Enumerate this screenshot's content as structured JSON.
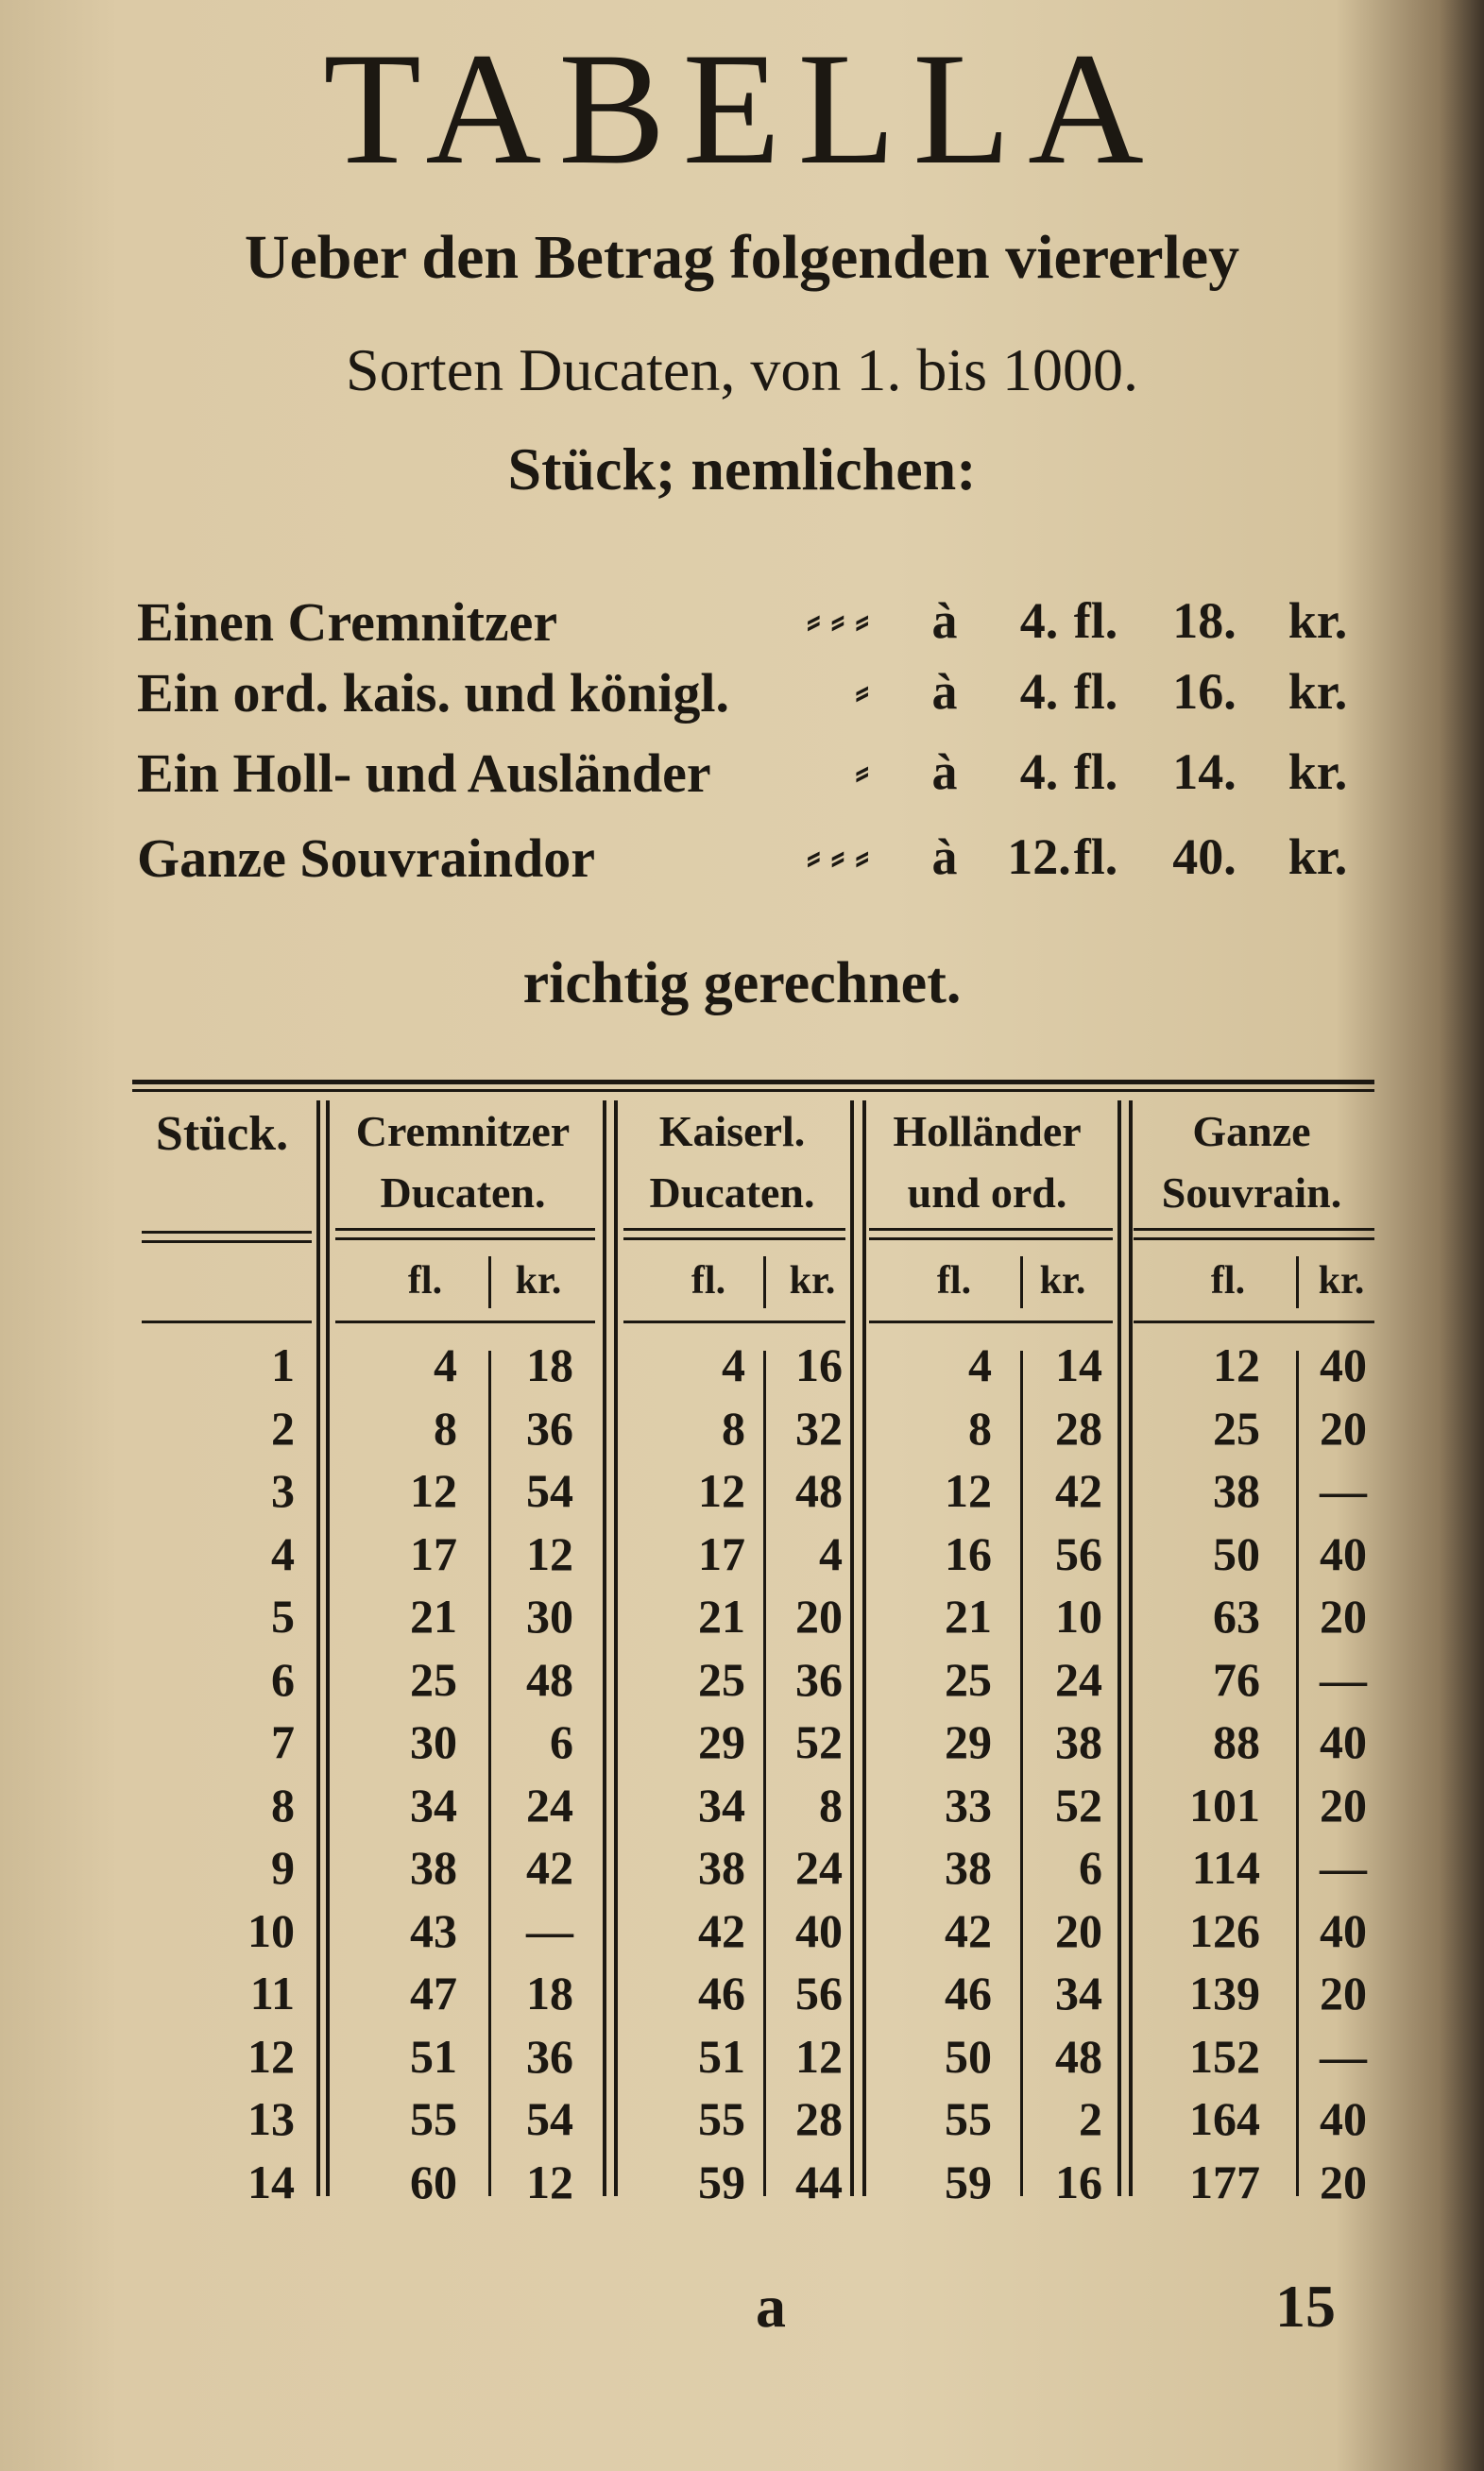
{
  "header": {
    "title": "TABELLA",
    "lines": [
      "Ueber den Betrag folgenden viererley",
      "Sorten Ducaten, von 1. bis 1000.",
      "Stück; nemlichen:"
    ]
  },
  "rates": [
    {
      "label": "Einen Cremnitzer",
      "leader": "⸗ ⸗ ⸗",
      "parts": [
        "à",
        "4.",
        "fl.",
        "18.",
        "kr."
      ]
    },
    {
      "label": "Ein ord. kais. und königl.",
      "leader": "⸗",
      "parts": [
        "à",
        "4.",
        "fl.",
        "16.",
        "kr."
      ]
    },
    {
      "label": "Ein Holl- und Ausländer",
      "leader": "⸗",
      "parts": [
        "à",
        "4.",
        "fl.",
        "14.",
        "kr."
      ]
    },
    {
      "label": "Ganze Souvraindor",
      "leader": "⸗ ⸗ ⸗",
      "parts": [
        "à",
        "12.",
        "fl.",
        "40.",
        "kr."
      ]
    }
  ],
  "note": "richtig gerechnet.",
  "table": {
    "headers": [
      [
        "Stück."
      ],
      [
        "Cremnitzer",
        "Ducaten."
      ],
      [
        "Kaiserl.",
        "Ducaten."
      ],
      [
        "Holländer",
        "und ord."
      ],
      [
        "Ganze",
        "Souvrain."
      ]
    ],
    "subheaders": [
      "fl.",
      "kr.",
      "fl.",
      "kr.",
      "fl.",
      "kr.",
      "fl.",
      "kr."
    ],
    "rows": [
      [
        "1",
        "4",
        "18",
        "4",
        "16",
        "4",
        "14",
        "12",
        "40"
      ],
      [
        "2",
        "8",
        "36",
        "8",
        "32",
        "8",
        "28",
        "25",
        "20"
      ],
      [
        "3",
        "12",
        "54",
        "12",
        "48",
        "12",
        "42",
        "38",
        "—"
      ],
      [
        "4",
        "17",
        "12",
        "17",
        "4",
        "16",
        "56",
        "50",
        "40"
      ],
      [
        "5",
        "21",
        "30",
        "21",
        "20",
        "21",
        "10",
        "63",
        "20"
      ],
      [
        "6",
        "25",
        "48",
        "25",
        "36",
        "25",
        "24",
        "76",
        "—"
      ],
      [
        "7",
        "30",
        "6",
        "29",
        "52",
        "29",
        "38",
        "88",
        "40"
      ],
      [
        "8",
        "34",
        "24",
        "34",
        "8",
        "33",
        "52",
        "101",
        "20"
      ],
      [
        "9",
        "38",
        "42",
        "38",
        "24",
        "38",
        "6",
        "114",
        "—"
      ],
      [
        "10",
        "43",
        "—",
        "42",
        "40",
        "42",
        "20",
        "126",
        "40"
      ],
      [
        "11",
        "47",
        "18",
        "46",
        "56",
        "46",
        "34",
        "139",
        "20"
      ],
      [
        "12",
        "51",
        "36",
        "51",
        "12",
        "50",
        "48",
        "152",
        "—"
      ],
      [
        "13",
        "55",
        "54",
        "55",
        "28",
        "55",
        "2",
        "164",
        "40"
      ],
      [
        "14",
        "60",
        "12",
        "59",
        "44",
        "59",
        "16",
        "177",
        "20"
      ]
    ]
  },
  "footer": {
    "signature": "a",
    "page": "15"
  }
}
